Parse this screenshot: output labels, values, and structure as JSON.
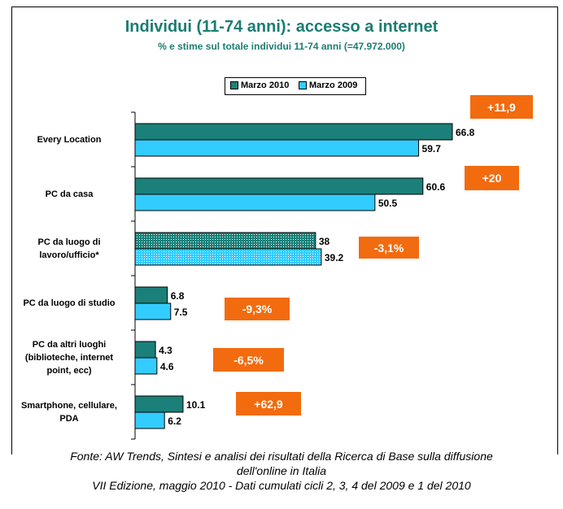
{
  "title": "Individui (11-74 anni): accesso a internet",
  "subtitle": "% e stime sul totale individui 11-74 anni (=47.972.000)",
  "legend": [
    {
      "label": "Marzo 2010",
      "color": "#1b8079"
    },
    {
      "label": "Marzo 2009",
      "color": "#33ccff"
    }
  ],
  "chart_data": {
    "type": "bar",
    "orientation": "horizontal",
    "xlim": [
      0,
      70
    ],
    "categories": [
      "Every Location",
      "PC da casa",
      "PC da luogo di lavoro/ufficio*",
      "PC da luogo di studio",
      "PC da altri luoghi (biblioteche, internet point, ecc)",
      "Smartphone, cellulare, PDA"
    ],
    "category_lines": [
      [
        "Every Location"
      ],
      [
        "PC da casa"
      ],
      [
        "PC da luogo di",
        "lavoro/ufficio*"
      ],
      [
        "PC da luogo di studio"
      ],
      [
        "PC da altri luoghi",
        "(biblioteche, internet",
        "point, ecc)"
      ],
      [
        "Smartphone, cellulare,",
        "PDA"
      ]
    ],
    "series": [
      {
        "name": "Marzo 2010",
        "values": [
          66.8,
          60.6,
          38,
          6.8,
          4.3,
          10.1
        ]
      },
      {
        "name": "Marzo 2009",
        "values": [
          59.7,
          50.5,
          39.2,
          7.5,
          4.6,
          6.2
        ]
      }
    ],
    "value_labels": [
      [
        "66.8",
        "59.7"
      ],
      [
        "60.6",
        "50.5"
      ],
      [
        "38",
        "39.2"
      ],
      [
        "6.8",
        "7.5"
      ],
      [
        "4.3",
        "4.6"
      ],
      [
        "10.1",
        "6.2"
      ]
    ],
    "hatched_categories": [
      2
    ],
    "change_labels": [
      "+11,9",
      "+20",
      "-3,1%",
      "-9,3%",
      "-6,5%",
      "+62,9"
    ]
  },
  "caption": [
    "Fonte: AW Trends, Sintesi e analisi dei risultati della Ricerca di Base sulla diffusione",
    "dell'online in Italia",
    "VII Edizione, maggio 2010 - Dati cumulati cicli 2, 3, 4 del 2009 e 1 del 2010"
  ]
}
